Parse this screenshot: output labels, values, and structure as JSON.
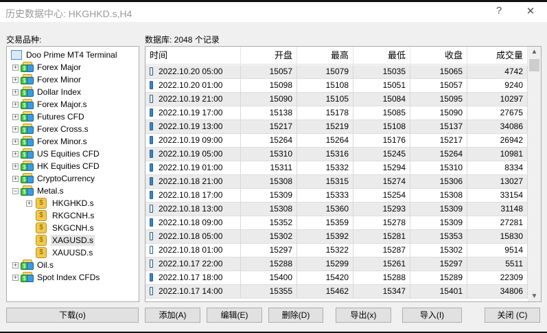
{
  "window": {
    "title": "历史数据中心: HKGHKD.s,H4",
    "help": "?",
    "close": "✕"
  },
  "tree": {
    "label": "交易品种:",
    "root": "Doo Prime MT4 Terminal",
    "groups": [
      "Forex Major",
      "Forex Minor",
      "Dollar Index",
      "Forex Major.s",
      "Futures CFD",
      "Forex Cross.s",
      "Forex Minor.s",
      "US Equities CFD",
      "HK Equities CFD",
      "CryptoCurrency",
      "Metal.s"
    ],
    "metal_children": [
      "HKGHKD.s",
      "RKGCNH.s",
      "SKGCNH.s",
      "XAGUSD.s",
      "XAUUSD.s"
    ],
    "selected": "XAGUSD.s",
    "after": [
      "Oil.s",
      "Spot Index CFDs"
    ]
  },
  "table": {
    "label": "数据库: 2048 个记录",
    "columns": [
      "时间",
      "开盘",
      "最高",
      "最低",
      "收盘",
      "成交量"
    ],
    "rows": [
      [
        "2022.10.20 05:00",
        "15057",
        "15079",
        "15035",
        "15065",
        "4742"
      ],
      [
        "2022.10.20 01:00",
        "15098",
        "15108",
        "15051",
        "15057",
        "9240"
      ],
      [
        "2022.10.19 21:00",
        "15090",
        "15105",
        "15084",
        "15095",
        "10297"
      ],
      [
        "2022.10.19 17:00",
        "15138",
        "15178",
        "15085",
        "15090",
        "27675"
      ],
      [
        "2022.10.19 13:00",
        "15217",
        "15219",
        "15108",
        "15137",
        "34086"
      ],
      [
        "2022.10.19 09:00",
        "15264",
        "15264",
        "15176",
        "15217",
        "26942"
      ],
      [
        "2022.10.19 05:00",
        "15310",
        "15316",
        "15245",
        "15264",
        "10981"
      ],
      [
        "2022.10.19 01:00",
        "15311",
        "15332",
        "15294",
        "15310",
        "8334"
      ],
      [
        "2022.10.18 21:00",
        "15308",
        "15315",
        "15274",
        "15306",
        "13027"
      ],
      [
        "2022.10.18 17:00",
        "15309",
        "15333",
        "15254",
        "15308",
        "33154"
      ],
      [
        "2022.10.18 13:00",
        "15308",
        "15360",
        "15293",
        "15309",
        "31148"
      ],
      [
        "2022.10.18 09:00",
        "15352",
        "15359",
        "15278",
        "15309",
        "27281"
      ],
      [
        "2022.10.18 05:00",
        "15302",
        "15392",
        "15281",
        "15353",
        "15830"
      ],
      [
        "2022.10.18 01:00",
        "15297",
        "15322",
        "15287",
        "15302",
        "9514"
      ],
      [
        "2022.10.17 22:00",
        "15288",
        "15299",
        "15261",
        "15297",
        "5511"
      ],
      [
        "2022.10.17 18:00",
        "15400",
        "15420",
        "15288",
        "15289",
        "22309"
      ],
      [
        "2022.10.17 14:00",
        "15355",
        "15462",
        "15347",
        "15401",
        "34806"
      ]
    ]
  },
  "buttons": {
    "download": "下载(o)",
    "add": "添加(A)",
    "edit": "编辑(E)",
    "delete": "删除(D)",
    "export": "导出(x)",
    "import": "导入(I)",
    "close": "关闭 (C)"
  }
}
